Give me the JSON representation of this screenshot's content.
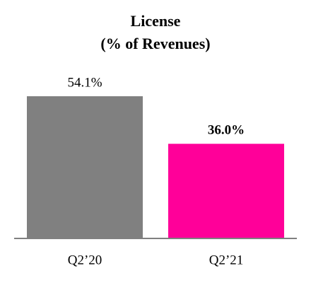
{
  "chart_data": {
    "type": "bar",
    "title": "License",
    "subtitle": "(% of Revenues)",
    "categories": [
      "Q2’20",
      "Q2’21"
    ],
    "values": [
      54.1,
      36.0
    ],
    "value_labels": [
      "54.1%",
      "36.0%"
    ],
    "colors": [
      "#808080",
      "#ff0099"
    ]
  }
}
